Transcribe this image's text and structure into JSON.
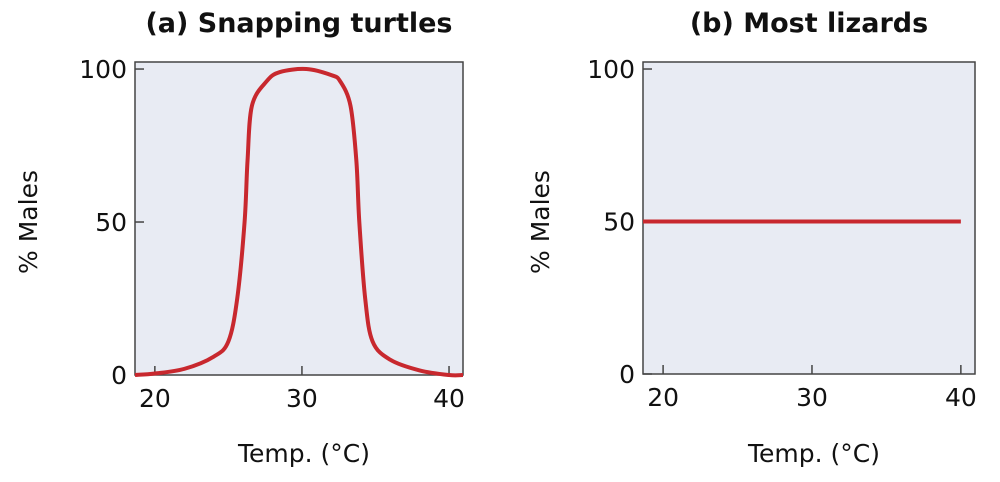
{
  "chart_data": [
    {
      "type": "line",
      "title": "(a) Snapping turtles",
      "xlabel": "Temp. (°C)",
      "ylabel": "% Males",
      "xlim": [
        18.65,
        40.95
      ],
      "ylim": [
        0,
        102.3
      ],
      "xticks": [
        20,
        30,
        40
      ],
      "yticks": [
        0,
        50,
        100
      ],
      "grid": false,
      "background": "#e8ebf3",
      "line_color": "#c8282e",
      "series": [
        {
          "x": [
            18.65,
            20,
            22,
            24,
            25,
            25.6,
            26.1,
            26.3,
            26.6,
            27.6,
            28.5,
            30.3,
            32,
            32.6,
            33.3,
            33.7,
            33.9,
            34.3,
            34.8,
            36,
            38,
            40,
            40.95
          ],
          "y": [
            0,
            0.5,
            2,
            6,
            11,
            25,
            50,
            70,
            88,
            96,
            99,
            100,
            98,
            96,
            88,
            70,
            50,
            25,
            11,
            5,
            1.5,
            0,
            0
          ]
        }
      ]
    },
    {
      "type": "line",
      "title": "(b) Most lizards",
      "xlabel": "Temp. (°C)",
      "ylabel": "% Males",
      "xlim": [
        18.65,
        40.95
      ],
      "ylim": [
        0,
        102.3
      ],
      "xticks": [
        20,
        30,
        40
      ],
      "yticks": [
        0,
        50,
        100
      ],
      "grid": false,
      "background": "#e8ebf3",
      "line_color": "#c8282e",
      "series": [
        {
          "x": [
            18.65,
            40
          ],
          "y": [
            50,
            50
          ]
        }
      ]
    }
  ]
}
